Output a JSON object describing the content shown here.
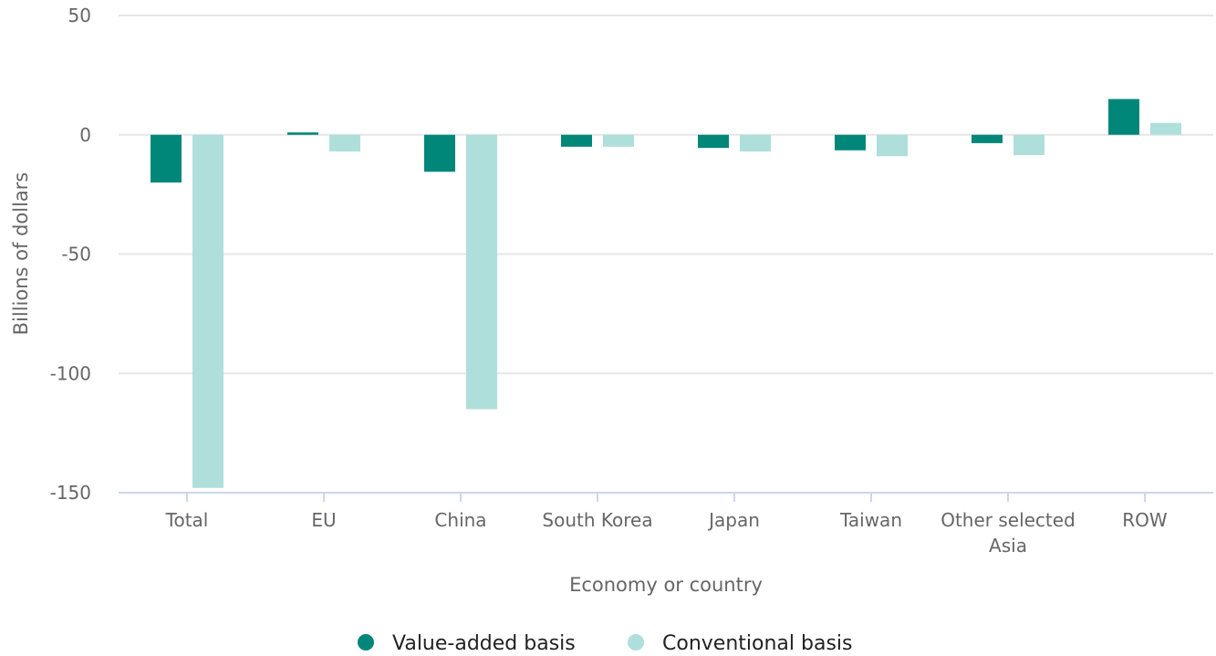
{
  "chart_data": {
    "type": "bar",
    "title": "",
    "xlabel": "Economy or country",
    "ylabel": "Billions of dollars",
    "ylim": [
      -150,
      50
    ],
    "yticks": [
      50,
      0,
      -50,
      -100,
      -150
    ],
    "grid": true,
    "legend_position": "bottom-center",
    "categories": [
      [
        "Total"
      ],
      [
        "EU"
      ],
      [
        "China"
      ],
      [
        "South Korea"
      ],
      [
        "Japan"
      ],
      [
        "Taiwan"
      ],
      [
        "Other selected",
        "Asia"
      ],
      [
        "ROW"
      ]
    ],
    "series": [
      {
        "name": "Value-added basis",
        "color": "#00877a",
        "values": [
          -20,
          1,
          -15.5,
          -5,
          -5.5,
          -6.5,
          -3.5,
          15
        ]
      },
      {
        "name": "Conventional basis",
        "color": "#afdfdb",
        "values": [
          -148,
          -7,
          -115,
          -5,
          -7,
          -9,
          -8.5,
          5
        ]
      }
    ]
  }
}
